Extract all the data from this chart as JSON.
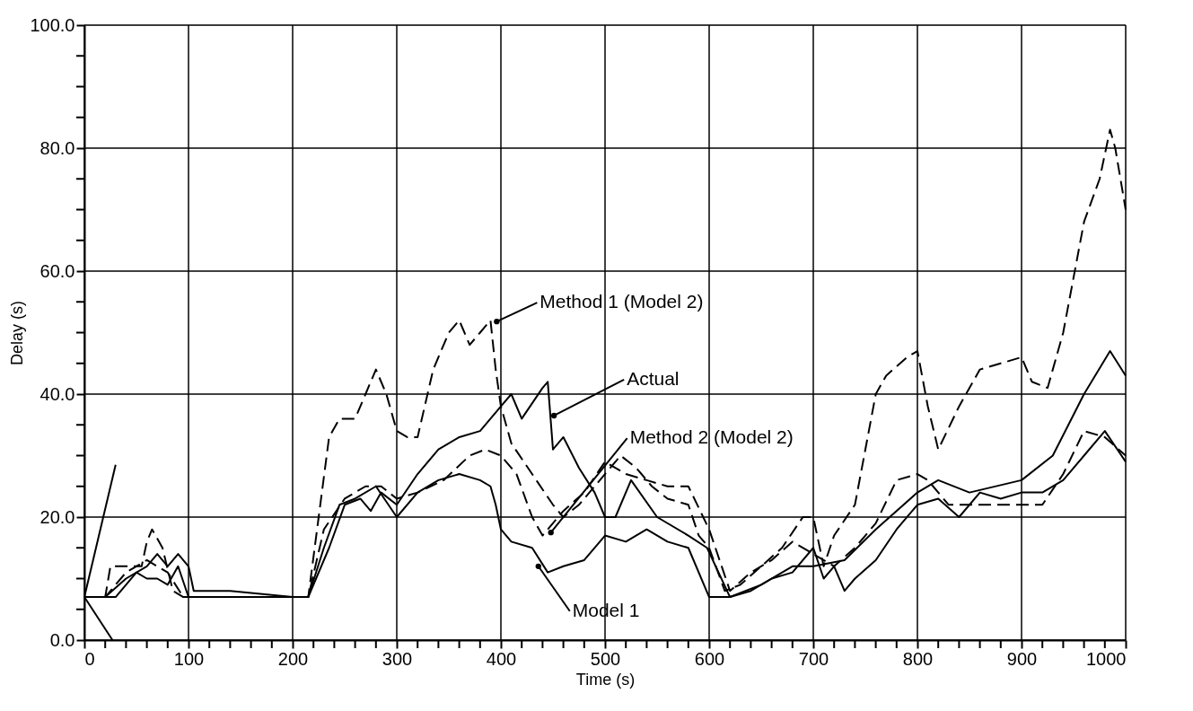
{
  "chart_data": {
    "type": "line",
    "xlabel": "Time (s)",
    "ylabel": "Delay (s)",
    "xlim": [
      0,
      1000
    ],
    "ylim": [
      0,
      100
    ],
    "xticks": [
      0,
      {
        "value": 20,
        "label": null
      },
      {
        "value": 40,
        "label": null
      },
      {
        "value": 60,
        "label": null
      },
      {
        "value": 80,
        "label": null
      },
      100,
      {
        "value": 120,
        "label": null
      },
      {
        "value": 140,
        "label": null
      },
      {
        "value": 160,
        "label": null
      },
      {
        "value": 180,
        "label": null
      },
      200,
      {
        "value": 220,
        "label": null
      },
      {
        "value": 240,
        "label": null
      },
      {
        "value": 260,
        "label": null
      },
      {
        "value": 280,
        "label": null
      },
      300,
      {
        "value": 320,
        "label": null
      },
      {
        "value": 340,
        "label": null
      },
      {
        "value": 360,
        "label": null
      },
      {
        "value": 380,
        "label": null
      },
      400,
      {
        "value": 420,
        "label": null
      },
      {
        "value": 440,
        "label": null
      },
      {
        "value": 460,
        "label": null
      },
      {
        "value": 480,
        "label": null
      },
      500,
      {
        "value": 520,
        "label": null
      },
      {
        "value": 540,
        "label": null
      },
      {
        "value": 560,
        "label": null
      },
      {
        "value": 580,
        "label": null
      },
      600,
      {
        "value": 620,
        "label": null
      },
      {
        "value": 640,
        "label": null
      },
      {
        "value": 660,
        "label": null
      },
      {
        "value": 680,
        "label": null
      },
      700,
      {
        "value": 720,
        "label": null
      },
      {
        "value": 740,
        "label": null
      },
      {
        "value": 760,
        "label": null
      },
      {
        "value": 780,
        "label": null
      },
      800,
      {
        "value": 820,
        "label": null
      },
      {
        "value": 840,
        "label": null
      },
      {
        "value": 860,
        "label": null
      },
      {
        "value": 880,
        "label": null
      },
      900,
      {
        "value": 920,
        "label": null
      },
      {
        "value": 940,
        "label": null
      },
      {
        "value": 960,
        "label": null
      },
      {
        "value": 980,
        "label": null
      },
      1000
    ],
    "yticks": [
      {
        "value": 0,
        "label": "0.0"
      },
      {
        "value": 5,
        "label": null
      },
      {
        "value": 10,
        "label": null
      },
      {
        "value": 15,
        "label": null
      },
      {
        "value": 20,
        "label": "20.0"
      },
      {
        "value": 25,
        "label": null
      },
      {
        "value": 30,
        "label": null
      },
      {
        "value": 35,
        "label": null
      },
      {
        "value": 40,
        "label": "40.0"
      },
      {
        "value": 45,
        "label": null
      },
      {
        "value": 50,
        "label": null
      },
      {
        "value": 55,
        "label": null
      },
      {
        "value": 60,
        "label": "60.0"
      },
      {
        "value": 65,
        "label": null
      },
      {
        "value": 70,
        "label": null
      },
      {
        "value": 75,
        "label": null
      },
      {
        "value": 80,
        "label": "80.0"
      },
      {
        "value": 85,
        "label": null
      },
      {
        "value": 90,
        "label": null
      },
      {
        "value": 95,
        "label": null
      },
      {
        "value": 100,
        "label": "100.0"
      }
    ],
    "grid": true,
    "marker": "none",
    "series": [
      {
        "color": "#000000",
        "line_style": "solid",
        "x": [
          0,
          20,
          40,
          60,
          70,
          80,
          90,
          100,
          105,
          140,
          200,
          215,
          235,
          250,
          265,
          275,
          285,
          300,
          320,
          340,
          360,
          380,
          400,
          410,
          420,
          440,
          445,
          450,
          460,
          475,
          490,
          500,
          510,
          525,
          550,
          580,
          598,
          620,
          650,
          680,
          700,
          730,
          760,
          800,
          820,
          850,
          900,
          930,
          960,
          985,
          1000
        ],
        "values": [
          7,
          7,
          10,
          12,
          14,
          12,
          14,
          12,
          8,
          8,
          7,
          7,
          15,
          22,
          23,
          21,
          24,
          22,
          27,
          31,
          33,
          34,
          38,
          40,
          36,
          41,
          42,
          31,
          33,
          28,
          24,
          20,
          20,
          26,
          20,
          17,
          15,
          7,
          9,
          12,
          12,
          13,
          18,
          24,
          26,
          24,
          26,
          30,
          40,
          47,
          43
        ]
      },
      {
        "color": "#000000",
        "line_style": "solid",
        "x": [
          0,
          30,
          50,
          60,
          70,
          80,
          90,
          100,
          200,
          215,
          230,
          245,
          260,
          280,
          300,
          320,
          340,
          360,
          380,
          390,
          395,
          400,
          410,
          430,
          445,
          460,
          480,
          500,
          520,
          540,
          560,
          580,
          600,
          620,
          640,
          660,
          680,
          700,
          710,
          720,
          730,
          740,
          760,
          780,
          800,
          820,
          840,
          860,
          880,
          900,
          920,
          940,
          960,
          980,
          1000
        ],
        "values": [
          7,
          7,
          11,
          10,
          10,
          9,
          12,
          7,
          7,
          7,
          15,
          22,
          23,
          25,
          20,
          24,
          26,
          27,
          26,
          25,
          22,
          18,
          16,
          15,
          11,
          12,
          13,
          17,
          16,
          18,
          16,
          15,
          7,
          7,
          8,
          10,
          11,
          15,
          10,
          12,
          8,
          10,
          13,
          18,
          22,
          23,
          20,
          24,
          23,
          24,
          24,
          26,
          30,
          34,
          29
        ]
      },
      {
        "color": "#000000",
        "line_style": "dashed",
        "x": [
          0,
          20,
          25,
          40,
          55,
          60,
          65,
          75,
          85,
          95,
          100,
          200,
          215,
          225,
          235,
          245,
          260,
          270,
          280,
          290,
          300,
          310,
          320,
          335,
          350,
          360,
          370,
          380,
          390,
          395,
          400,
          410,
          430,
          450,
          460,
          475,
          490,
          505,
          515,
          530,
          545,
          560,
          580,
          590,
          600,
          615,
          630,
          650,
          670,
          690,
          700,
          710,
          720,
          740,
          760,
          770,
          790,
          800,
          810,
          820,
          840,
          860,
          880,
          900,
          910,
          925,
          940,
          960,
          975,
          985,
          990,
          1000
        ],
        "values": [
          7,
          7,
          12,
          12,
          12,
          16,
          18,
          15,
          8,
          7,
          7,
          7,
          7,
          20,
          33,
          36,
          36,
          40,
          44,
          40,
          34,
          33,
          33,
          44,
          50,
          52,
          48,
          50,
          52,
          44,
          38,
          32,
          27,
          22,
          20,
          22,
          25,
          28,
          30,
          28,
          25,
          23,
          22,
          17,
          15,
          8,
          9,
          12,
          15,
          20,
          20,
          12,
          17,
          22,
          40,
          43,
          46,
          47,
          38,
          31,
          38,
          44,
          45,
          46,
          42,
          41,
          50,
          68,
          75,
          83,
          80,
          70
        ]
      },
      {
        "color": "#000000",
        "line_style": "dashed",
        "x": [
          0,
          20,
          40,
          60,
          70,
          80,
          95,
          100,
          200,
          215,
          230,
          250,
          270,
          285,
          300,
          320,
          345,
          370,
          385,
          400,
          415,
          430,
          440,
          460,
          480,
          500,
          520,
          540,
          560,
          580,
          600,
          620,
          640,
          660,
          680,
          700,
          720,
          740,
          760,
          780,
          800,
          810,
          830,
          850,
          870,
          900,
          920,
          940,
          960,
          980,
          1000
        ],
        "values": [
          7,
          7,
          11,
          13,
          12,
          11,
          7,
          7,
          7,
          7,
          18,
          23,
          25,
          25,
          23,
          24,
          26,
          30,
          31,
          30,
          27,
          20,
          17,
          21,
          24,
          29,
          27,
          26,
          25,
          25,
          18,
          8,
          11,
          13,
          16,
          14,
          12,
          15,
          19,
          26,
          27,
          26,
          22,
          22,
          22,
          22,
          22,
          27,
          34,
          33,
          30
        ]
      },
      {
        "color": "#000000",
        "line_style": "solid",
        "x": [
          0,
          30
        ],
        "values": [
          7,
          28.5
        ]
      },
      {
        "color": "#000000",
        "line_style": "solid",
        "x": [
          0,
          27
        ],
        "values": [
          7,
          0
        ]
      }
    ],
    "annotations": [
      {
        "text": "Method 1 (Model 2)",
        "x": 396,
        "y": 51.8
      },
      {
        "text": "Actual",
        "x": 451,
        "y": 36.5
      },
      {
        "text": "Method 2 (Model 2)",
        "x": 448,
        "y": 17.5
      },
      {
        "text": "Model 1",
        "x": 436,
        "y": 12
      }
    ]
  }
}
